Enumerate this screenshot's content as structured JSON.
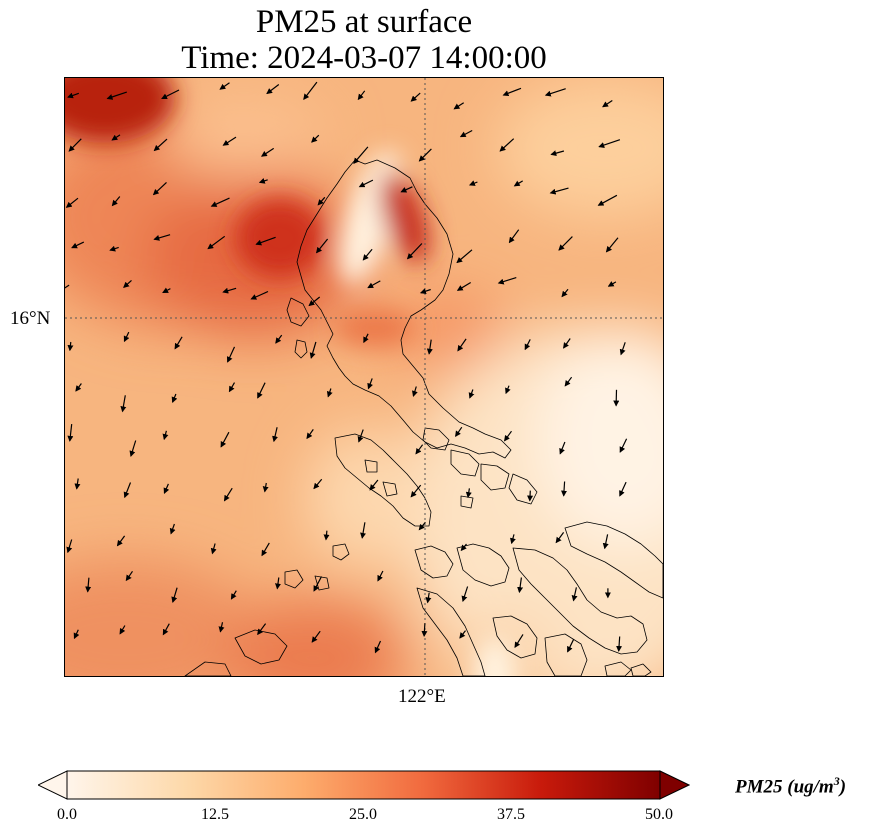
{
  "title": {
    "line1": "PM25 at surface",
    "line2": "Time: 2024-03-07 14:00:00"
  },
  "axes": {
    "lat_tick": "16°N",
    "lon_tick": "122°E"
  },
  "colorbar": {
    "label_prefix": "PM25 (ug/m",
    "label_exponent": "3",
    "label_suffix": ")",
    "ticks": [
      "0.0",
      "12.5",
      "25.0",
      "37.5",
      "50.0"
    ],
    "min": 0,
    "max": 50,
    "colors": [
      "#fff5eb",
      "#fdd9aa",
      "#fdac6c",
      "#f16a3e",
      "#c81a0b",
      "#7f0000"
    ],
    "extend": "both"
  },
  "map": {
    "variable": "PM25",
    "colormap": "OrRd",
    "gridlines": "dotted",
    "wind_vectors": true,
    "coastlines": true
  }
}
